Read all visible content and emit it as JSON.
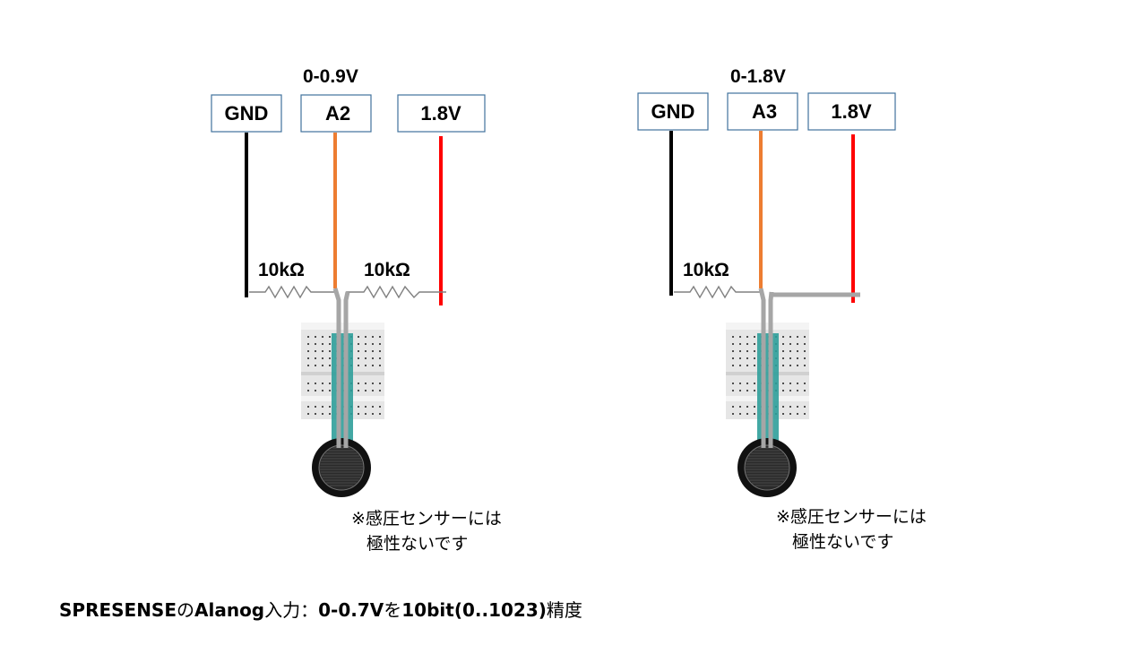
{
  "circuits": [
    {
      "range_label": "0-0.9V",
      "pins": {
        "gnd": "GND",
        "analog": "A2",
        "vcc": "1.8V"
      },
      "resistors": [
        "10kΩ",
        "10kΩ"
      ],
      "note_line1": "※感圧センサーには",
      "note_line2": "極性ないです"
    },
    {
      "range_label": "0-1.8V",
      "pins": {
        "gnd": "GND",
        "analog": "A3",
        "vcc": "1.8V"
      },
      "resistors": [
        "10kΩ"
      ],
      "note_line1": "※感圧センサーには",
      "note_line2": "極性ないです"
    }
  ],
  "footer": {
    "part1": "SPRESENSE",
    "part2": "の",
    "part3": "Alanog",
    "part4": "入力：",
    "part5": "0-0.7V",
    "part6": "を",
    "part7": "10bit(0..1023)",
    "part8": "精度"
  },
  "colors": {
    "gnd_wire": "#000000",
    "analog_wire": "#ed7d31",
    "vcc_wire": "#ff0000",
    "pin_border": "#41719c",
    "lead": "#a6a6a6",
    "sensor_strip": "#2f9e9a"
  }
}
